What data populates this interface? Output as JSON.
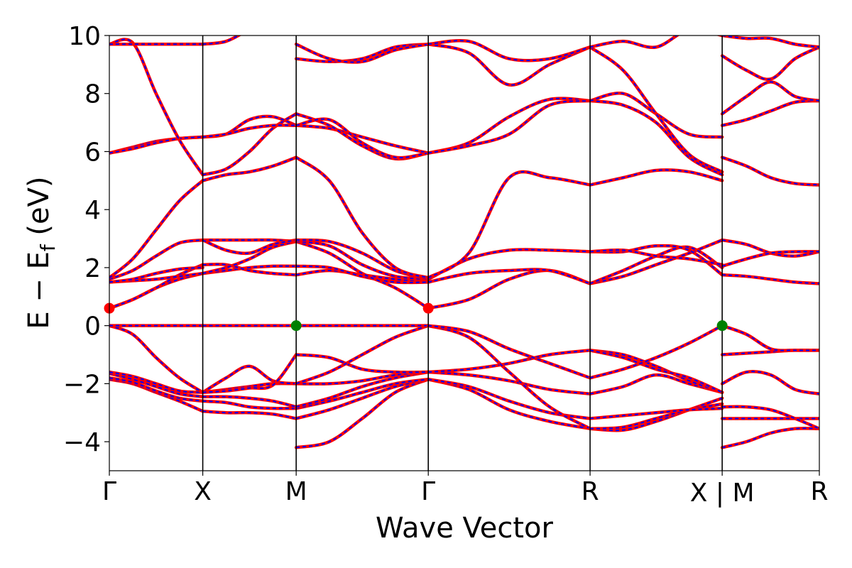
{
  "chart_data": {
    "type": "line",
    "xlabel": "Wave Vector",
    "ylabel": "E − E_f (eV)",
    "ylabel_parts": {
      "main": "E − E",
      "sub": "f",
      "tail": " (eV)"
    },
    "ylim": [
      -5,
      10
    ],
    "yticks": [
      "10",
      "8",
      "6",
      "4",
      "2",
      "0",
      "−2",
      "−4"
    ],
    "ytick_values": [
      10,
      8,
      6,
      4,
      2,
      0,
      -2,
      -4
    ],
    "xlim": [
      0,
      7.6
    ],
    "kpoints": [
      {
        "label": "Γ",
        "x": 0
      },
      {
        "label": "X",
        "x": 1
      },
      {
        "label": "M",
        "x": 2
      },
      {
        "label": "Γ",
        "x": 3.414
      },
      {
        "label": "R",
        "x": 5.146
      },
      {
        "label": "X | M",
        "x": 6.56
      },
      {
        "label": "R",
        "x": 7.6
      }
    ],
    "grid": false,
    "legend": "none",
    "colors": {
      "band_solid": "#ff0000",
      "band_dashed": "#0000ff",
      "vbm": "#008000",
      "cbm": "#ff0000",
      "kline": "#000000"
    },
    "markers": [
      {
        "name": "cbm-marker",
        "x": 0,
        "y": 0.6,
        "color": "#ff0000"
      },
      {
        "name": "vbm-marker",
        "x": 2,
        "y": 0.0,
        "color": "#008000"
      },
      {
        "name": "cbm-marker",
        "x": 3.414,
        "y": 0.6,
        "color": "#ff0000"
      },
      {
        "name": "vbm-marker",
        "x": 6.56,
        "y": 0.0,
        "color": "#008000"
      }
    ],
    "segments": [
      {
        "name": "Gamma-X",
        "x_start": 0,
        "x_end": 1,
        "bands": [
          [
            -1.85,
            -2.0,
            -2.3,
            -2.6,
            -2.95
          ],
          [
            -1.8,
            -1.95,
            -2.25,
            -2.5,
            -2.6
          ],
          [
            -1.65,
            -1.85,
            -2.1,
            -2.35,
            -2.45
          ],
          [
            -1.6,
            -1.75,
            -2.0,
            -2.25,
            -2.3
          ],
          [
            0.0,
            -0.3,
            -1.1,
            -1.8,
            -2.3
          ],
          [
            0.0,
            0.0,
            0.0,
            0.0,
            0.0
          ],
          [
            0.6,
            0.9,
            1.3,
            1.6,
            1.8
          ],
          [
            0.6,
            0.9,
            1.3,
            1.75,
            2.1
          ],
          [
            1.5,
            1.55,
            1.6,
            1.7,
            1.8
          ],
          [
            1.5,
            1.6,
            1.8,
            1.95,
            2.0
          ],
          [
            1.6,
            1.9,
            2.4,
            2.85,
            2.95
          ],
          [
            1.65,
            2.3,
            3.3,
            4.3,
            5.0
          ],
          [
            5.95,
            6.15,
            6.35,
            6.45,
            6.5
          ],
          [
            5.95,
            6.1,
            6.3,
            6.45,
            6.5
          ],
          [
            9.7,
            9.75,
            8.0,
            6.4,
            5.2
          ],
          [
            9.7,
            9.7,
            9.7,
            9.7,
            9.7
          ]
        ]
      },
      {
        "name": "X-M",
        "x_start": 1,
        "x_end": 2,
        "bands": [
          [
            -2.95,
            -3.0,
            -3.0,
            -3.05,
            -3.2
          ],
          [
            -2.6,
            -2.65,
            -2.8,
            -2.85,
            -2.85
          ],
          [
            -2.45,
            -2.45,
            -2.5,
            -2.6,
            -2.8
          ],
          [
            -2.3,
            -2.2,
            -2.1,
            -2.0,
            -2.0
          ],
          [
            -2.3,
            -1.8,
            -1.4,
            -1.9,
            -2.0
          ],
          [
            -2.3,
            -2.25,
            -2.15,
            -2.05,
            -1.0
          ],
          [
            0.0,
            0.0,
            0.0,
            0.0,
            0.0
          ],
          [
            1.8,
            1.9,
            2.0,
            2.05,
            2.05
          ],
          [
            2.1,
            2.1,
            1.9,
            1.8,
            1.75
          ],
          [
            1.8,
            2.0,
            2.3,
            2.7,
            2.9
          ],
          [
            2.95,
            2.95,
            2.95,
            2.95,
            2.9
          ],
          [
            2.95,
            2.6,
            2.5,
            2.8,
            2.95
          ],
          [
            5.0,
            5.2,
            5.3,
            5.5,
            5.8
          ],
          [
            5.2,
            5.4,
            6.0,
            6.8,
            7.3
          ],
          [
            6.5,
            6.6,
            7.1,
            7.2,
            6.9
          ],
          [
            6.5,
            6.6,
            6.8,
            6.9,
            6.9
          ],
          [
            9.7,
            9.8,
            10.2,
            10.5,
            10.6
          ]
        ]
      },
      {
        "name": "M-Gamma",
        "x_start": 2,
        "x_end": 3.414,
        "bands": [
          [
            -4.2,
            -4.0,
            -3.2,
            -2.3,
            -1.85
          ],
          [
            -3.2,
            -2.9,
            -2.5,
            -2.1,
            -1.85
          ],
          [
            -2.85,
            -2.6,
            -2.3,
            -2.0,
            -1.85
          ],
          [
            -2.8,
            -2.5,
            -2.1,
            -1.8,
            -1.6
          ],
          [
            -2.0,
            -2.0,
            -1.9,
            -1.7,
            -1.6
          ],
          [
            -1.0,
            -1.1,
            -1.5,
            -1.6,
            -1.6
          ],
          [
            -2.0,
            -1.6,
            -1.0,
            -0.4,
            0.0
          ],
          [
            0.0,
            0.0,
            0.0,
            0.0,
            0.0
          ],
          [
            1.75,
            1.9,
            1.75,
            1.6,
            1.5
          ],
          [
            2.05,
            2.0,
            1.7,
            1.5,
            1.5
          ],
          [
            2.9,
            2.5,
            1.8,
            1.3,
            0.6
          ],
          [
            2.9,
            2.75,
            2.1,
            1.7,
            1.6
          ],
          [
            2.95,
            2.9,
            2.5,
            1.9,
            1.6
          ],
          [
            5.8,
            5.0,
            3.2,
            2.0,
            1.65
          ],
          [
            6.9,
            6.8,
            6.5,
            6.2,
            5.95
          ],
          [
            7.3,
            6.9,
            6.2,
            5.75,
            5.95
          ],
          [
            6.9,
            7.1,
            6.3,
            5.8,
            5.95
          ],
          [
            9.2,
            9.1,
            9.2,
            9.6,
            9.7
          ],
          [
            9.7,
            9.2,
            9.1,
            9.5,
            9.7
          ]
        ]
      },
      {
        "name": "Gamma-R",
        "x_start": 3.414,
        "x_end": 5.146,
        "bands": [
          [
            -1.85,
            -2.2,
            -2.9,
            -3.3,
            -3.55
          ],
          [
            -1.85,
            -2.1,
            -2.6,
            -3.0,
            -3.2
          ],
          [
            -1.6,
            -1.7,
            -1.9,
            -2.2,
            -2.35
          ],
          [
            -1.6,
            -1.5,
            -1.3,
            -1.0,
            -0.85
          ],
          [
            0.0,
            -0.4,
            -1.6,
            -2.8,
            -3.55
          ],
          [
            0.0,
            -0.2,
            -0.8,
            -1.3,
            -1.8
          ],
          [
            0.6,
            0.9,
            1.6,
            1.9,
            1.45
          ],
          [
            1.5,
            1.8,
            1.9,
            1.9,
            1.45
          ],
          [
            1.6,
            2.3,
            2.6,
            2.6,
            2.55
          ],
          [
            1.65,
            2.5,
            5.1,
            5.1,
            4.85
          ],
          [
            5.95,
            6.3,
            7.2,
            7.8,
            7.75
          ],
          [
            5.95,
            6.2,
            6.6,
            7.6,
            7.75
          ],
          [
            9.7,
            9.4,
            8.3,
            9.0,
            9.6
          ],
          [
            9.7,
            9.8,
            9.2,
            9.2,
            9.6
          ]
        ]
      },
      {
        "name": "R-X",
        "x_start": 5.146,
        "x_end": 6.56,
        "bands": [
          [
            -3.55,
            -3.6,
            -3.3,
            -2.9,
            -2.5
          ],
          [
            -3.55,
            -3.5,
            -3.2,
            -2.9,
            -2.7
          ],
          [
            -3.2,
            -3.1,
            -3.0,
            -2.9,
            -2.85
          ],
          [
            -2.35,
            -2.1,
            -1.7,
            -2.0,
            -2.3
          ],
          [
            -0.85,
            -1.0,
            -1.4,
            -1.9,
            -2.3
          ],
          [
            -0.85,
            -1.1,
            -1.5,
            -1.8,
            -2.3
          ],
          [
            -1.8,
            -1.5,
            -1.1,
            -0.6,
            0.0
          ],
          [
            1.45,
            1.7,
            2.1,
            2.5,
            2.95
          ],
          [
            1.45,
            1.9,
            2.4,
            2.7,
            2.0
          ],
          [
            2.55,
            2.55,
            2.75,
            2.6,
            1.75
          ],
          [
            2.55,
            2.6,
            2.4,
            2.3,
            2.1
          ],
          [
            4.85,
            5.1,
            5.35,
            5.3,
            5.0
          ],
          [
            7.75,
            7.6,
            7.0,
            5.8,
            5.2
          ],
          [
            7.75,
            8.0,
            7.3,
            6.6,
            6.5
          ],
          [
            9.6,
            8.8,
            7.3,
            5.9,
            5.3
          ],
          [
            9.6,
            9.8,
            9.6,
            10.2,
            10.0
          ]
        ]
      },
      {
        "name": "M-R",
        "x_start": 6.56,
        "x_end": 7.6,
        "bands": [
          [
            -4.2,
            -4.0,
            -3.7,
            -3.55,
            -3.55
          ],
          [
            -3.2,
            -3.2,
            -3.2,
            -3.2,
            -3.2
          ],
          [
            -2.8,
            -2.8,
            -2.9,
            -3.2,
            -3.55
          ],
          [
            -2.0,
            -1.6,
            -1.7,
            -2.2,
            -2.35
          ],
          [
            -1.0,
            -0.95,
            -0.9,
            -0.85,
            -0.85
          ],
          [
            0.0,
            -0.3,
            -0.8,
            -0.85,
            -0.85
          ],
          [
            1.75,
            1.7,
            1.6,
            1.5,
            1.45
          ],
          [
            2.95,
            2.8,
            2.5,
            2.4,
            2.55
          ],
          [
            2.05,
            2.3,
            2.5,
            2.55,
            2.55
          ],
          [
            5.8,
            5.5,
            5.1,
            4.9,
            4.85
          ],
          [
            6.9,
            7.1,
            7.4,
            7.7,
            7.75
          ],
          [
            7.3,
            7.9,
            8.4,
            7.9,
            7.75
          ],
          [
            9.3,
            8.8,
            8.5,
            9.2,
            9.6
          ],
          [
            10.0,
            9.9,
            9.9,
            9.7,
            9.6
          ]
        ]
      }
    ]
  }
}
